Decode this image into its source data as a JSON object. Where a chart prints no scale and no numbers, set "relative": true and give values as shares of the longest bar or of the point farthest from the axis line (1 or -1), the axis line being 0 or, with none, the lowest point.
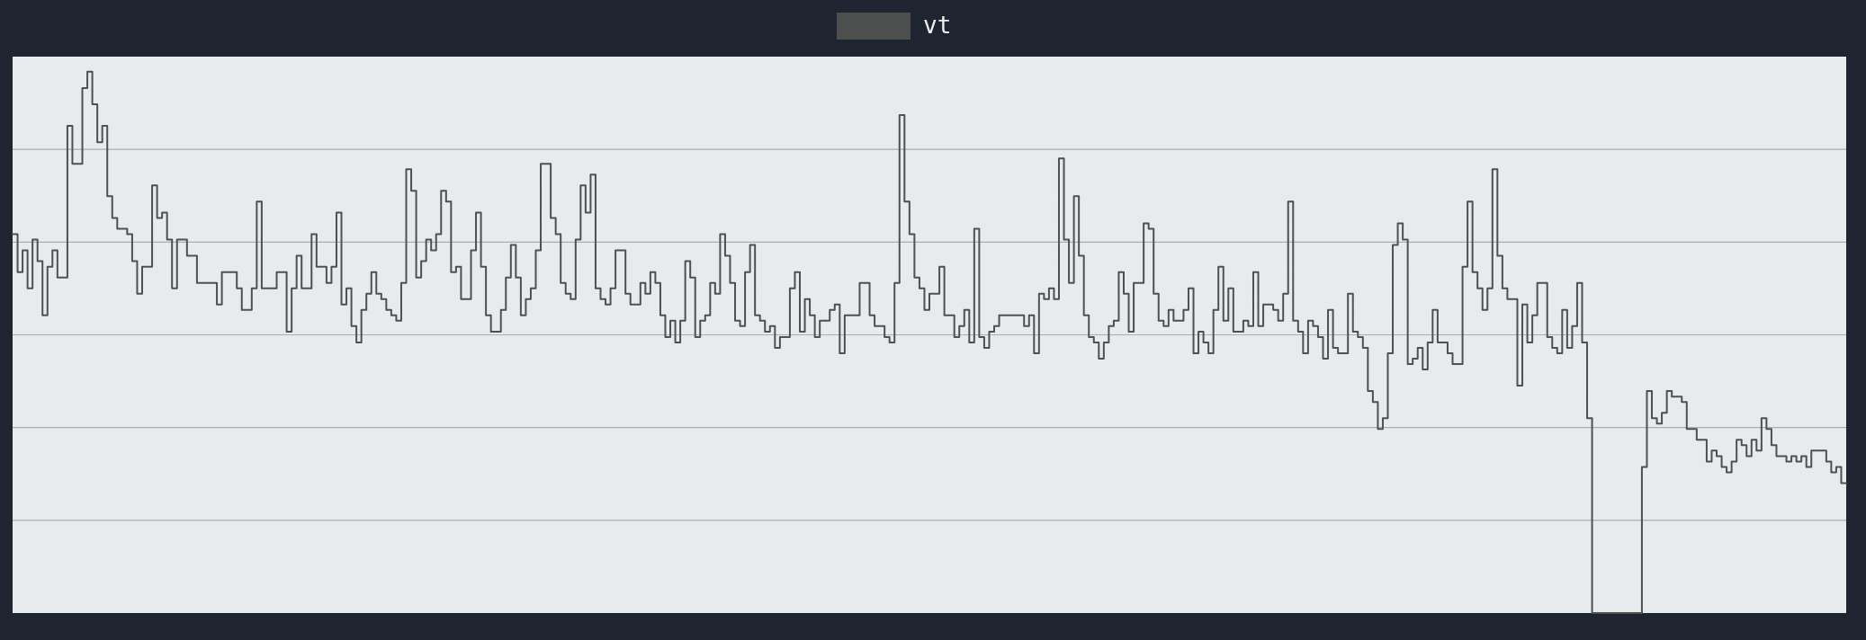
{
  "chart_data": {
    "type": "step",
    "relative": true,
    "grid": "y",
    "legend": "top",
    "line_style": "solid",
    "categories": [
      null,
      null,
      null,
      null,
      null,
      null,
      null,
      null,
      null,
      null,
      null,
      null,
      null,
      null,
      null,
      null,
      null,
      null,
      null,
      null,
      null,
      null,
      null,
      null,
      null,
      null,
      null,
      null,
      null,
      null,
      null,
      null,
      null,
      null,
      null,
      null,
      null,
      null,
      null,
      null,
      null,
      null,
      null,
      null,
      null,
      null,
      null,
      null,
      null,
      null,
      null,
      null,
      null,
      null,
      null,
      null,
      null,
      null,
      null,
      null,
      null,
      null,
      null,
      null,
      null,
      null,
      null,
      null,
      null,
      null,
      null,
      null,
      null,
      null,
      null,
      null,
      null,
      null,
      null,
      null,
      null,
      null,
      null,
      null,
      null,
      null,
      null,
      null,
      null,
      null,
      null,
      null,
      null,
      null,
      null,
      null,
      null,
      null,
      null,
      null,
      null,
      null,
      null,
      null,
      null,
      null,
      null,
      null,
      null,
      null,
      null,
      null,
      null,
      null,
      null,
      null,
      null,
      null,
      null,
      null,
      null,
      null,
      null,
      null,
      null,
      null,
      null,
      null,
      null,
      null,
      null,
      null,
      null,
      null,
      null,
      null,
      null,
      null,
      null,
      null,
      null,
      null,
      null,
      null,
      null,
      null,
      null,
      null,
      null,
      null,
      null,
      null,
      null,
      null,
      null,
      null,
      null,
      null,
      null,
      null,
      null,
      null,
      null,
      null,
      null,
      null,
      null,
      null,
      null,
      null,
      null,
      null,
      null,
      null,
      null,
      null,
      null,
      null,
      null,
      null,
      null,
      null,
      null,
      null,
      null,
      null,
      null,
      null,
      null,
      null,
      null,
      null,
      null,
      null,
      null,
      null,
      null,
      null,
      null,
      null,
      null,
      null,
      null,
      null,
      null,
      null,
      null,
      null,
      null,
      null,
      null,
      null,
      null,
      null,
      null,
      null,
      null,
      null,
      null,
      null,
      null,
      null,
      null,
      null,
      null,
      null,
      null,
      null,
      null,
      null,
      null,
      null,
      null,
      null,
      null,
      null,
      null,
      null,
      null,
      null,
      null,
      null,
      null,
      null,
      null,
      null,
      null,
      null,
      null,
      null,
      null,
      null,
      null,
      null,
      null,
      null,
      null,
      null,
      null,
      null,
      null,
      null,
      null,
      null,
      null,
      null,
      null,
      null,
      null,
      null,
      null,
      null,
      null,
      null,
      null,
      null,
      null,
      null,
      null,
      null,
      null,
      null,
      null,
      null,
      null,
      null,
      null,
      null,
      null,
      null,
      null,
      null,
      null,
      null,
      null,
      null,
      null,
      null,
      null,
      null,
      null,
      null,
      null,
      null,
      null,
      null,
      null,
      null,
      null,
      null,
      null,
      null,
      null,
      null,
      null,
      null,
      null,
      null,
      null,
      null,
      null,
      null,
      null,
      null,
      null,
      null,
      null,
      null,
      null,
      null,
      null,
      null,
      null,
      null,
      null,
      null,
      null,
      null,
      null,
      null,
      null,
      null,
      null,
      null,
      null,
      null,
      null,
      null,
      null,
      null,
      null,
      null,
      null,
      null,
      null,
      null,
      null,
      null,
      null,
      null,
      null,
      null,
      null,
      null,
      null,
      null,
      null,
      null
    ],
    "series": [
      {
        "name": "vt",
        "color": "#505050",
        "values": [
          0.7,
          0.63,
          0.67,
          0.6,
          0.69,
          0.65,
          0.55,
          0.64,
          0.67,
          0.62,
          0.62,
          0.9,
          0.83,
          0.83,
          0.97,
          1,
          0.94,
          0.87,
          0.9,
          0.77,
          0.73,
          0.71,
          0.71,
          0.7,
          0.65,
          0.59,
          0.64,
          0.64,
          0.79,
          0.73,
          0.74,
          0.69,
          0.6,
          0.69,
          0.69,
          0.66,
          0.66,
          0.61,
          0.61,
          0.61,
          0.61,
          0.57,
          0.63,
          0.63,
          0.63,
          0.6,
          0.56,
          0.56,
          0.6,
          0.76,
          0.6,
          0.6,
          0.6,
          0.63,
          0.63,
          0.52,
          0.6,
          0.66,
          0.6,
          0.6,
          0.7,
          0.64,
          0.64,
          0.61,
          0.64,
          0.74,
          0.57,
          0.6,
          0.53,
          0.5,
          0.56,
          0.59,
          0.63,
          0.59,
          0.58,
          0.56,
          0.55,
          0.54,
          0.61,
          0.82,
          0.78,
          0.62,
          0.65,
          0.69,
          0.67,
          0.7,
          0.78,
          0.76,
          0.63,
          0.64,
          0.58,
          0.58,
          0.67,
          0.74,
          0.64,
          0.55,
          0.52,
          0.52,
          0.56,
          0.62,
          0.68,
          0.62,
          0.55,
          0.58,
          0.6,
          0.67,
          0.83,
          0.83,
          0.73,
          0.7,
          0.61,
          0.59,
          0.58,
          0.69,
          0.79,
          0.74,
          0.81,
          0.6,
          0.58,
          0.57,
          0.6,
          0.67,
          0.67,
          0.59,
          0.57,
          0.57,
          0.61,
          0.59,
          0.63,
          0.61,
          0.55,
          0.51,
          0.54,
          0.5,
          0.54,
          0.65,
          0.62,
          0.51,
          0.54,
          0.55,
          0.61,
          0.59,
          0.7,
          0.66,
          0.61,
          0.54,
          0.53,
          0.63,
          0.68,
          0.55,
          0.54,
          0.52,
          0.53,
          0.49,
          0.51,
          0.51,
          0.6,
          0.63,
          0.52,
          0.58,
          0.55,
          0.51,
          0.54,
          0.54,
          0.56,
          0.57,
          0.48,
          0.55,
          0.55,
          0.55,
          0.61,
          0.61,
          0.55,
          0.53,
          0.53,
          0.51,
          0.5,
          0.61,
          0.92,
          0.76,
          0.7,
          0.62,
          0.6,
          0.56,
          0.59,
          0.59,
          0.64,
          0.55,
          0.55,
          0.51,
          0.53,
          0.56,
          0.5,
          0.71,
          0.51,
          0.49,
          0.52,
          0.53,
          0.55,
          0.55,
          0.55,
          0.55,
          0.55,
          0.53,
          0.55,
          0.48,
          0.59,
          0.58,
          0.6,
          0.58,
          0.84,
          0.69,
          0.61,
          0.77,
          0.66,
          0.55,
          0.51,
          0.5,
          0.47,
          0.5,
          0.53,
          0.54,
          0.63,
          0.59,
          0.52,
          0.61,
          0.61,
          0.72,
          0.71,
          0.59,
          0.54,
          0.53,
          0.56,
          0.54,
          0.54,
          0.56,
          0.6,
          0.48,
          0.52,
          0.5,
          0.48,
          0.56,
          0.64,
          0.54,
          0.6,
          0.52,
          0.52,
          0.54,
          0.53,
          0.63,
          0.53,
          0.57,
          0.57,
          0.56,
          0.54,
          0.59,
          0.76,
          0.54,
          0.52,
          0.48,
          0.54,
          0.53,
          0.51,
          0.47,
          0.56,
          0.49,
          0.48,
          0.48,
          0.59,
          0.52,
          0.51,
          0.49,
          0.41,
          0.39,
          0.34,
          0.36,
          0.48,
          0.68,
          0.72,
          0.69,
          0.46,
          0.47,
          0.49,
          0.45,
          0.5,
          0.56,
          0.5,
          0.5,
          0.48,
          0.46,
          0.46,
          0.64,
          0.76,
          0.63,
          0.6,
          0.56,
          0.6,
          0.82,
          0.66,
          0.6,
          0.58,
          0.58,
          0.42,
          0.57,
          0.5,
          0.55,
          0.61,
          0.61,
          0.51,
          0.49,
          0.48,
          0.56,
          0.49,
          0.53,
          0.61,
          0.5,
          0.36,
          0,
          0,
          0,
          0,
          0,
          0,
          0,
          0,
          0,
          0,
          0.27,
          0.41,
          0.36,
          0.35,
          0.37,
          0.41,
          0.4,
          0.4,
          0.39,
          0.34,
          0.34,
          0.32,
          0.32,
          0.28,
          0.3,
          0.29,
          0.27,
          0.26,
          0.28,
          0.32,
          0.31,
          0.29,
          0.32,
          0.3,
          0.36,
          0.34,
          0.31,
          0.29,
          0.29,
          0.28,
          0.29,
          0.28,
          0.29,
          0.27,
          0.3,
          0.3,
          0.3,
          0.28,
          0.26,
          0.27,
          0.24
        ]
      }
    ]
  }
}
